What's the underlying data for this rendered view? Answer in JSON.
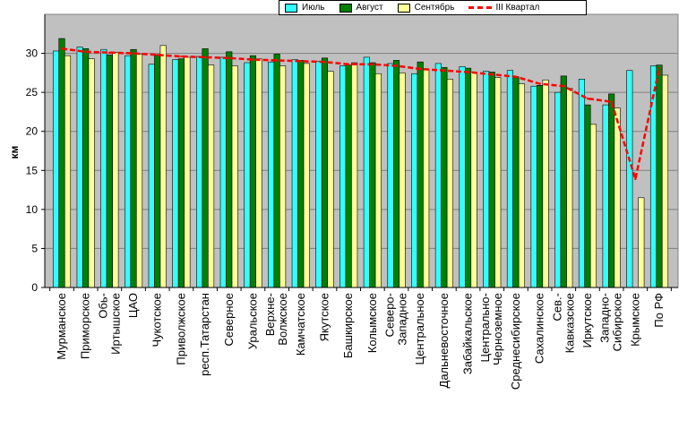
{
  "chart_data": {
    "type": "bar",
    "ylabel": "км",
    "ylim": [
      0,
      35
    ],
    "yticks": [
      0,
      5,
      10,
      15,
      20,
      25,
      30
    ],
    "grid": true,
    "legend_position": "top",
    "categories": [
      "Мурманское",
      "Приморское",
      "Обь-Иртышское",
      "ЦАО",
      "Чукотское",
      "Приволжское",
      "респ.Татарстан",
      "Северное",
      "Уральское",
      "Верхне-Волжское",
      "Камчатское",
      "Якутское",
      "Башкирское",
      "Колымское",
      "Северо-Западное",
      "Центральное",
      "Дальневосточное",
      "Забайкальское",
      "Центрально-Черноземное",
      "Среднесибирское",
      "Сахалинское",
      "Сев.-Кавказское",
      "Иркутское",
      "Западно-Сибирское",
      "Крымское",
      "По РФ"
    ],
    "category_lines": [
      [
        "Мурманское"
      ],
      [
        "Приморское"
      ],
      [
        "Обь-",
        "Иртышское"
      ],
      [
        "ЦАО"
      ],
      [
        "Чукотское"
      ],
      [
        "Приволжское"
      ],
      [
        "респ.Татарстан"
      ],
      [
        "Северное"
      ],
      [
        "Уральское"
      ],
      [
        "Верхне-",
        "Волжское"
      ],
      [
        "Камчатское"
      ],
      [
        "Якутское"
      ],
      [
        "Башкирское"
      ],
      [
        "Колымское"
      ],
      [
        "Северо-",
        "Западное"
      ],
      [
        "Центральное"
      ],
      [
        "Дальневосточное"
      ],
      [
        "Забайкальское"
      ],
      [
        "Центрально-",
        "Черноземное"
      ],
      [
        "Среднесибирское"
      ],
      [
        "Сахалинское"
      ],
      [
        "Сев.-",
        "Кавказское"
      ],
      [
        "Иркутское"
      ],
      [
        "Западно-",
        "Сибирское"
      ],
      [
        "Крымское"
      ],
      [
        "По РФ"
      ]
    ],
    "series": [
      {
        "name": "Июль",
        "type": "bar",
        "color": "#33ffff",
        "values": [
          30.3,
          30.8,
          30.5,
          29.7,
          28.6,
          29.2,
          29.6,
          29.5,
          28.8,
          28.9,
          29.2,
          29.0,
          28.4,
          29.5,
          28.7,
          27.4,
          28.7,
          28.3,
          27.7,
          27.8,
          25.8,
          25.0,
          26.7,
          23.4,
          27.8,
          28.4
        ]
      },
      {
        "name": "Август",
        "type": "bar",
        "color": "#008000",
        "values": [
          31.9,
          30.6,
          29.8,
          30.5,
          29.8,
          29.3,
          30.6,
          30.2,
          29.7,
          29.9,
          29.1,
          29.4,
          28.5,
          28.8,
          29.1,
          28.9,
          28.2,
          28.1,
          27.6,
          27.0,
          25.9,
          27.1,
          23.4,
          24.8,
          0,
          28.5
        ]
      },
      {
        "name": "Сентябрь",
        "type": "bar",
        "color": "#ffff99",
        "values": [
          29.7,
          29.3,
          30.1,
          29.9,
          31.0,
          29.5,
          28.5,
          28.4,
          29.3,
          28.4,
          28.7,
          27.7,
          28.8,
          27.4,
          27.5,
          27.9,
          26.7,
          27.6,
          26.9,
          26.1,
          26.6,
          25.5,
          20.9,
          23.0,
          11.5,
          27.2
        ]
      },
      {
        "name": "III Квартал",
        "type": "line",
        "color": "#ff0000",
        "values": [
          30.6,
          30.2,
          30.1,
          30.0,
          29.8,
          29.6,
          29.5,
          29.4,
          29.2,
          29.1,
          29.0,
          28.9,
          28.6,
          28.6,
          28.4,
          28.0,
          27.8,
          27.6,
          27.3,
          27.0,
          26.1,
          25.8,
          24.2,
          23.8,
          13.9,
          28.1
        ]
      }
    ]
  }
}
